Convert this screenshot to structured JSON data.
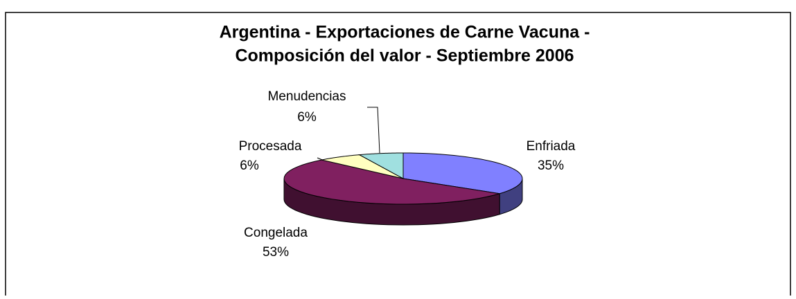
{
  "chart_data": {
    "type": "pie3d",
    "title": [
      "Argentina - Exportaciones de Carne Vacuna -",
      "Composición del valor - Septiembre 2006"
    ],
    "categories": [
      "Enfriada",
      "Congelada",
      "Procesada",
      "Menudencias"
    ],
    "values": [
      35,
      53,
      6,
      6
    ],
    "value_labels": [
      "35%",
      "53%",
      "6%",
      "6%"
    ],
    "colors": [
      "#8080ff",
      "#802060",
      "#ffffc0",
      "#a0e0e0"
    ]
  }
}
